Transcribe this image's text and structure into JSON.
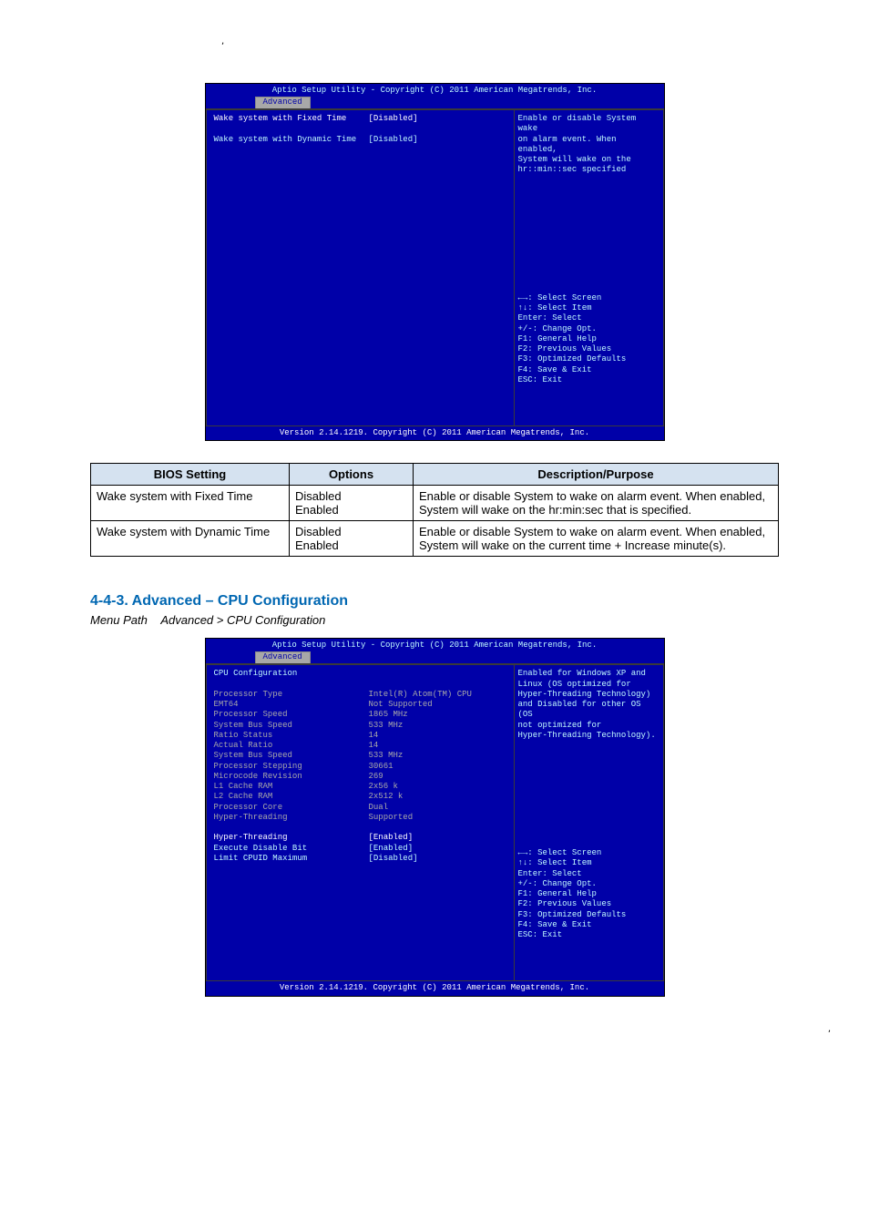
{
  "page_header_date": ",",
  "bios1": {
    "header_title": "Aptio Setup Utility - Copyright (C) 2011 American Megatrends, Inc.",
    "tab": "Advanced",
    "footer": "Version 2.14.1219. Copyright (C) 2011 American Megatrends, Inc.",
    "rows": [
      {
        "label": "Wake system with Fixed Time",
        "value": "[Disabled]",
        "label_color": "white",
        "value_color": "white"
      },
      {
        "label": "",
        "value": ""
      },
      {
        "label": "Wake system with Dynamic Time",
        "value": "[Disabled]",
        "label_color": "cyan",
        "value_color": "cyan"
      }
    ],
    "help_top": [
      "Enable or disable System wake",
      "on alarm event. When enabled,",
      "System will wake on the",
      "hr::min::sec specified"
    ],
    "help_bottom": [
      "←→: Select Screen",
      "↑↓: Select Item",
      "Enter: Select",
      "+/-: Change Opt.",
      "F1: General Help",
      "F2: Previous Values",
      "F3: Optimized Defaults",
      "F4: Save & Exit",
      "ESC: Exit"
    ]
  },
  "table": {
    "headers": [
      "BIOS Setting",
      "Options",
      "Description/Purpose"
    ],
    "rows": [
      {
        "c1": "Wake system with Fixed Time",
        "c2": "Disabled\nEnabled",
        "c3": "Enable or disable System to wake on alarm event. When enabled, System will wake on the hr:min:sec that is specified."
      },
      {
        "c1": "Wake system with Dynamic Time",
        "c2": "Disabled\nEnabled",
        "c3": "Enable or disable System to wake on alarm event. When enabled, System will wake on the current time + Increase minute(s)."
      }
    ]
  },
  "section": {
    "heading": "4-4-3. Advanced – CPU Configuration",
    "sub": "Menu Path Advanced > CPU Configuration"
  },
  "bios2": {
    "header_title": "Aptio Setup Utility - Copyright (C) 2011 American Megatrends, Inc.",
    "tab": "Advanced",
    "footer": "Version 2.14.1219. Copyright (C) 2011 American Megatrends, Inc.",
    "rows": [
      {
        "label": "CPU Configuration",
        "value": "",
        "label_color": "cyan"
      },
      {
        "label": "",
        "value": ""
      },
      {
        "label": "Processor Type",
        "value": "Intel(R) Atom(TM) CPU",
        "label_color": "gray",
        "value_color": "gray"
      },
      {
        "label": "EMT64",
        "value": "Not Supported",
        "label_color": "gray",
        "value_color": "gray"
      },
      {
        "label": "Processor Speed",
        "value": "1865 MHz",
        "label_color": "gray",
        "value_color": "gray"
      },
      {
        "label": "System Bus Speed",
        "value": "533 MHz",
        "label_color": "gray",
        "value_color": "gray"
      },
      {
        "label": "Ratio Status",
        "value": "14",
        "label_color": "gray",
        "value_color": "gray"
      },
      {
        "label": "Actual Ratio",
        "value": "14",
        "label_color": "gray",
        "value_color": "gray"
      },
      {
        "label": "System Bus Speed",
        "value": "533 MHz",
        "label_color": "gray",
        "value_color": "gray"
      },
      {
        "label": "Processor Stepping",
        "value": "30661",
        "label_color": "gray",
        "value_color": "gray"
      },
      {
        "label": "Microcode Revision",
        "value": "269",
        "label_color": "gray",
        "value_color": "gray"
      },
      {
        "label": "L1 Cache RAM",
        "value": "2x56 k",
        "label_color": "gray",
        "value_color": "gray"
      },
      {
        "label": "L2 Cache RAM",
        "value": "2x512 k",
        "label_color": "gray",
        "value_color": "gray"
      },
      {
        "label": "Processor Core",
        "value": "Dual",
        "label_color": "gray",
        "value_color": "gray"
      },
      {
        "label": "Hyper-Threading",
        "value": "Supported",
        "label_color": "gray",
        "value_color": "gray"
      },
      {
        "label": "",
        "value": ""
      },
      {
        "label": "Hyper-Threading",
        "value": "[Enabled]",
        "label_color": "white",
        "value_color": "white"
      },
      {
        "label": "Execute Disable Bit",
        "value": "[Enabled]",
        "label_color": "cyan",
        "value_color": "cyan"
      },
      {
        "label": "Limit CPUID Maximum",
        "value": "[Disabled]",
        "label_color": "cyan",
        "value_color": "cyan"
      }
    ],
    "help_top": [
      "Enabled for Windows XP and",
      "Linux (OS optimized for",
      "Hyper-Threading Technology)",
      "and Disabled for other OS (OS",
      "not optimized for",
      "Hyper-Threading Technology)."
    ],
    "help_bottom": [
      "←→: Select Screen",
      "↑↓: Select Item",
      "Enter: Select",
      "+/-: Change Opt.",
      "F1: General Help",
      "F2: Previous Values",
      "F3: Optimized Defaults",
      "F4: Save & Exit",
      "ESC: Exit"
    ]
  },
  "footer": {
    "left": "",
    "right": ","
  }
}
